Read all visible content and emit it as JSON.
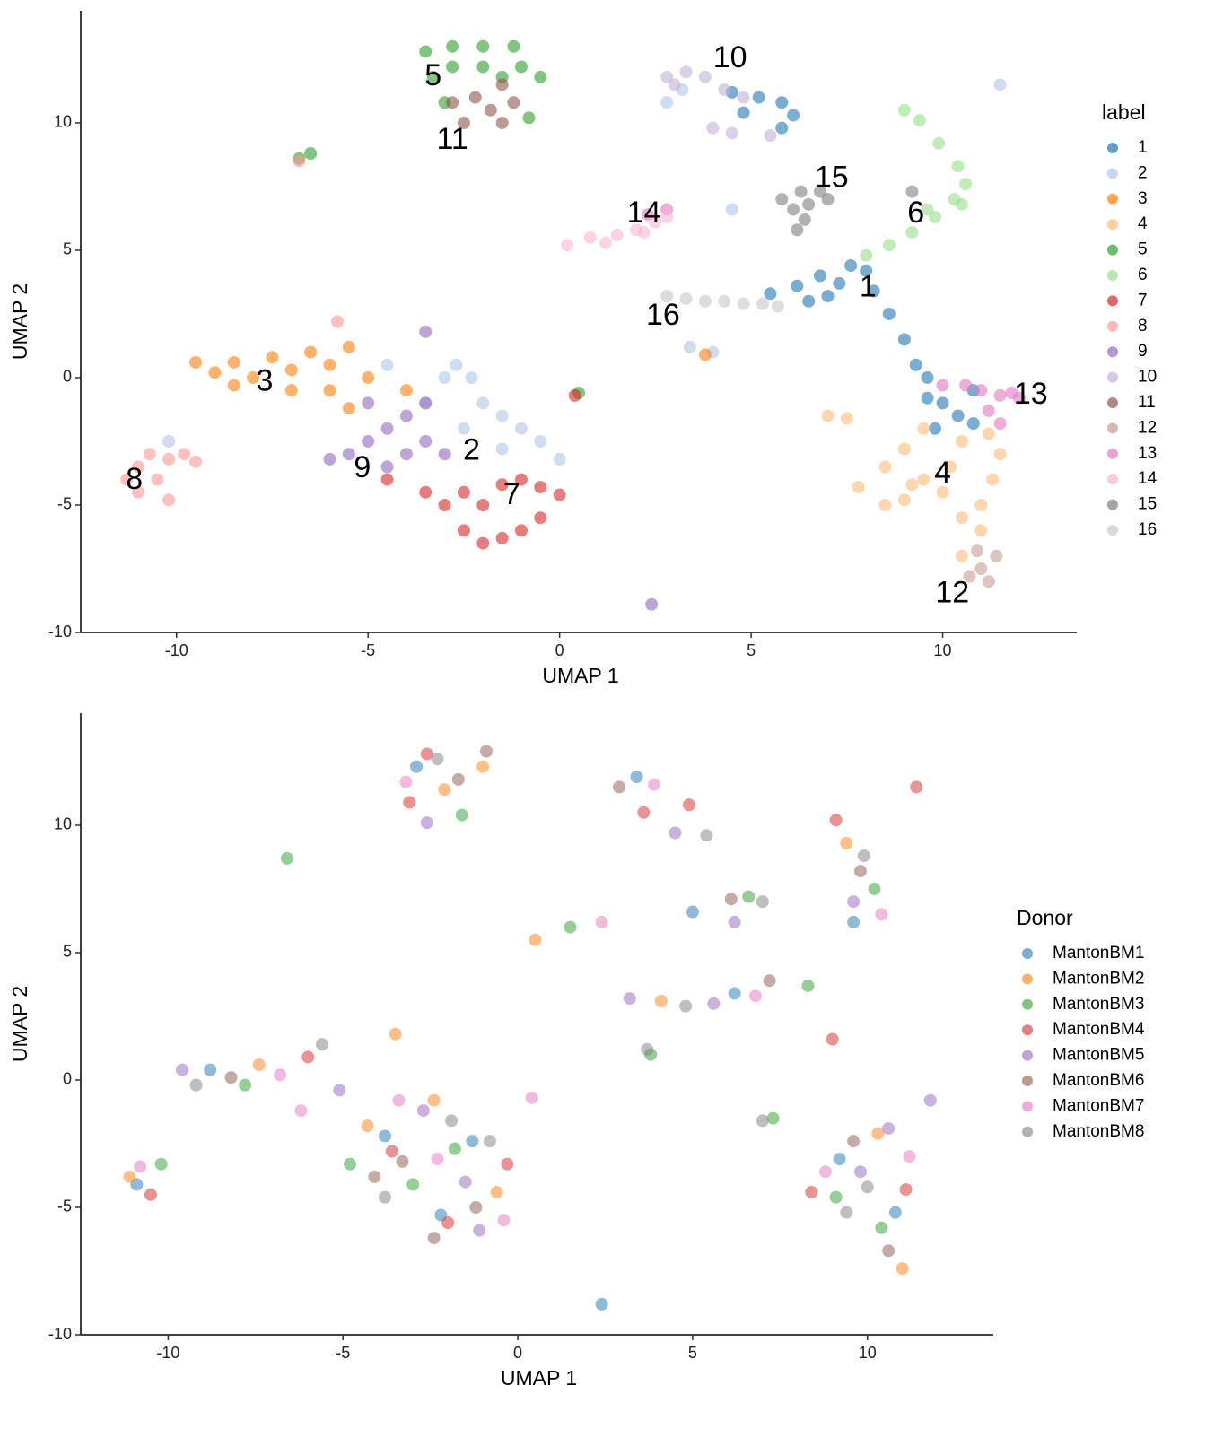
{
  "chart_data": [
    {
      "type": "scatter",
      "xlabel": "UMAP 1",
      "ylabel": "UMAP 2",
      "xlim": [
        -12.5,
        13.5
      ],
      "ylim": [
        -10,
        14.4
      ],
      "xticks": [
        -10,
        -5,
        0,
        5,
        10
      ],
      "yticks": [
        -10,
        -5,
        0,
        5,
        10
      ],
      "legend_title": "label",
      "legend": "right",
      "series": [
        {
          "name": "1",
          "color": "#1f77b4",
          "x": [
            5.5,
            6.2,
            6.8,
            7.3,
            7.6,
            8,
            8.2,
            8.6,
            9,
            9.3,
            9.6,
            9.6,
            10,
            10.4,
            10.8,
            9.8,
            10.8,
            4.5,
            5.2,
            5.8,
            6.1,
            5.8,
            4.8,
            6.5,
            7
          ],
          "y": [
            3.3,
            3.6,
            4,
            3.7,
            4.4,
            4.2,
            3.4,
            2.5,
            1.5,
            0.5,
            0,
            -0.8,
            -1,
            -1.5,
            -0.5,
            -2,
            -1.8,
            11.2,
            11,
            10.8,
            10.3,
            9.8,
            10.4,
            3,
            3.2
          ]
        },
        {
          "name": "2",
          "color": "#aec7e8",
          "x": [
            -3,
            -2.7,
            -2.3,
            -2,
            -1.5,
            -1,
            -0.5,
            0,
            -2.5,
            -1.5,
            -3.5,
            -4.5,
            4,
            3.4,
            -10.2,
            2.8,
            3.2,
            4.5,
            11.5
          ],
          "y": [
            0,
            0.5,
            0,
            -1,
            -1.5,
            -2,
            -2.5,
            -3.2,
            -2,
            -2.8,
            -1,
            0.5,
            1,
            1.2,
            -2.5,
            10.8,
            11.3,
            6.6,
            11.5
          ]
        },
        {
          "name": "3",
          "color": "#ff7f0e",
          "x": [
            -9.5,
            -9,
            -8.5,
            -8,
            -7.5,
            -7,
            -6.5,
            -6,
            -5.5,
            -6,
            -7,
            -8.5,
            -5,
            -4,
            -5.5,
            3.8
          ],
          "y": [
            0.6,
            0.2,
            0.6,
            0,
            0.8,
            0.3,
            1,
            0.5,
            1.2,
            -0.5,
            -0.5,
            -0.3,
            0,
            -0.5,
            -1.2,
            0.9
          ]
        },
        {
          "name": "4",
          "color": "#ffbb78",
          "x": [
            7.8,
            8.5,
            9,
            9.5,
            10.5,
            11.2,
            11.5,
            11.3,
            11,
            11,
            10.5,
            10,
            9.5,
            9,
            8.5,
            10.5,
            7,
            7.5,
            9.2,
            10.2
          ],
          "y": [
            -4.3,
            -3.5,
            -2.8,
            -2,
            -2.5,
            -2.2,
            -3,
            -4,
            -5,
            -6,
            -5.5,
            -4.5,
            -4,
            -4.8,
            -5,
            -7,
            -1.5,
            -1.6,
            -4.2,
            -3.5
          ]
        },
        {
          "name": "5",
          "color": "#2ca02c",
          "x": [
            -3.5,
            -2.8,
            -2,
            -1.2,
            -3.3,
            -2.8,
            -2,
            -1.5,
            -3,
            -1,
            -0.5,
            -0.8,
            -6.5,
            -6.8,
            0.5
          ],
          "y": [
            12.8,
            13,
            13,
            13,
            11.8,
            12.2,
            12.2,
            11.8,
            10.8,
            12.2,
            11.8,
            10.2,
            8.8,
            8.6,
            -0.6
          ]
        },
        {
          "name": "6",
          "color": "#98df8a",
          "x": [
            8,
            8.6,
            9.2,
            9.8,
            10.3,
            10.6,
            10.4,
            9.9,
            9.4,
            9,
            9.6,
            10.5
          ],
          "y": [
            4.8,
            5.2,
            5.7,
            6.3,
            7,
            7.6,
            8.3,
            9.2,
            10.1,
            10.5,
            6.6,
            6.8
          ]
        },
        {
          "name": "7",
          "color": "#d62728",
          "x": [
            -3,
            -2.5,
            -2,
            -1.5,
            -1,
            -0.5,
            0,
            -0.5,
            -1,
            -1.5,
            -2,
            -2.5,
            -3.5,
            -4.5,
            0.4
          ],
          "y": [
            -5,
            -4.5,
            -5,
            -4.2,
            -4,
            -4.3,
            -4.6,
            -5.5,
            -6,
            -6.3,
            -6.5,
            -6,
            -4.5,
            -4,
            -0.7
          ]
        },
        {
          "name": "8",
          "color": "#ff9896",
          "x": [
            -11.3,
            -11,
            -10.7,
            -10.2,
            -9.8,
            -9.5,
            -10.5,
            -10.2,
            -11,
            -6.8,
            -5.8
          ],
          "y": [
            -4,
            -3.5,
            -3,
            -3.2,
            -3,
            -3.3,
            -4,
            -4.8,
            -4.5,
            8.5,
            2.2
          ]
        },
        {
          "name": "9",
          "color": "#9467bd",
          "x": [
            -6,
            -5.5,
            -5,
            -4.5,
            -4,
            -4,
            -3.5,
            -3,
            -4.5,
            -5,
            -3.5,
            -3.5,
            2.4
          ],
          "y": [
            -3.2,
            -3,
            -2.5,
            -2,
            -1.5,
            -3,
            -2.5,
            -3,
            -3.5,
            -1,
            -1,
            1.8,
            -8.9
          ]
        },
        {
          "name": "10",
          "color": "#c5b0d5",
          "x": [
            2.8,
            3.3,
            3.8,
            4.3,
            4.8,
            4,
            4.5,
            5.5,
            3
          ],
          "y": [
            11.8,
            12,
            11.8,
            11.3,
            11,
            9.8,
            9.6,
            9.5,
            11.5
          ]
        },
        {
          "name": "11",
          "color": "#8c564b",
          "x": [
            -2.8,
            -2.2,
            -1.8,
            -2.5,
            -1.5,
            -1.2,
            -1.5
          ],
          "y": [
            10.8,
            11,
            10.5,
            10,
            10,
            10.8,
            11.5
          ]
        },
        {
          "name": "12",
          "color": "#c49c94",
          "x": [
            10.9,
            11,
            11.2,
            10.7,
            11.4
          ],
          "y": [
            -6.8,
            -7.5,
            -8,
            -7.8,
            -7
          ]
        },
        {
          "name": "13",
          "color": "#e377c2",
          "x": [
            10,
            10.6,
            11,
            11.5,
            12,
            11.8,
            11.2,
            11.5,
            2.8,
            2.3
          ],
          "y": [
            -0.3,
            -0.3,
            -0.5,
            -0.7,
            -0.8,
            -0.6,
            -1.3,
            -1.8,
            6.6,
            6.4
          ]
        },
        {
          "name": "14",
          "color": "#f7b6d2",
          "x": [
            0.2,
            0.8,
            1.5,
            2,
            2.5,
            2.8,
            1.2,
            2.2
          ],
          "y": [
            5.2,
            5.5,
            5.6,
            5.8,
            6.1,
            6.3,
            5.3,
            5.7
          ]
        },
        {
          "name": "15",
          "color": "#7f7f7f",
          "x": [
            5.8,
            6.3,
            6.8,
            7,
            6.5,
            6.1,
            6.4,
            6.2,
            9.2
          ],
          "y": [
            7,
            7.3,
            7.3,
            7,
            6.8,
            6.6,
            6.2,
            5.8,
            7.3
          ]
        },
        {
          "name": "16",
          "color": "#c7c7c7",
          "x": [
            2.8,
            3.3,
            3.8,
            4.3,
            4.8,
            5.3,
            5.7
          ],
          "y": [
            3.2,
            3.1,
            3,
            3,
            2.9,
            2.9,
            2.8
          ]
        }
      ],
      "annotations": [
        {
          "text": "1",
          "x": 8.05,
          "y": 3.5
        },
        {
          "text": "2",
          "x": -2.3,
          "y": -2.9
        },
        {
          "text": "3",
          "x": -7.7,
          "y": -0.2
        },
        {
          "text": "4",
          "x": 10,
          "y": -3.8
        },
        {
          "text": "5",
          "x": -3.3,
          "y": 11.8
        },
        {
          "text": "6",
          "x": 9.3,
          "y": 6.4
        },
        {
          "text": "7",
          "x": -1.25,
          "y": -4.65
        },
        {
          "text": "8",
          "x": -11.1,
          "y": -4.05
        },
        {
          "text": "9",
          "x": -5.15,
          "y": -3.6
        },
        {
          "text": "10",
          "x": 4.45,
          "y": 12.5
        },
        {
          "text": "11",
          "x": -2.8,
          "y": 9.3
        },
        {
          "text": "12",
          "x": 10.25,
          "y": -8.5
        },
        {
          "text": "13",
          "x": 12.3,
          "y": -0.7
        },
        {
          "text": "14",
          "x": 2.2,
          "y": 6.4
        },
        {
          "text": "15",
          "x": 7.1,
          "y": 7.8
        },
        {
          "text": "16",
          "x": 2.7,
          "y": 2.4
        }
      ]
    },
    {
      "type": "scatter",
      "xlabel": "UMAP 1",
      "ylabel": "UMAP 2",
      "xlim": [
        -12.5,
        13.6
      ],
      "ylim": [
        -10,
        14.4
      ],
      "xticks": [
        -10,
        -5,
        0,
        5,
        10
      ],
      "yticks": [
        -10,
        -5,
        0,
        5,
        10
      ],
      "legend_title": "Donor",
      "legend": "right",
      "series": [
        {
          "name": "MantonBM1",
          "color": "#1f77b4",
          "x": [
            -8.8,
            -10.9,
            -3.8,
            -1.3,
            -2.2,
            -2.9,
            3.4,
            6.2,
            9.2,
            10.8,
            9.6,
            5,
            2.4
          ],
          "y": [
            0.4,
            -4.1,
            -2.2,
            -2.4,
            -5.3,
            12.3,
            11.9,
            3.4,
            -3.1,
            -5.2,
            6.2,
            6.6,
            -8.8
          ]
        },
        {
          "name": "MantonBM2",
          "color": "#ff7f0e",
          "x": [
            -7.4,
            -11.1,
            -4.3,
            -2.4,
            -0.6,
            -2.1,
            -1,
            4.1,
            10.3,
            11,
            9.4,
            0.5,
            -3.5
          ],
          "y": [
            0.6,
            -3.8,
            -1.8,
            -0.8,
            -4.4,
            11.4,
            12.3,
            3.1,
            -2.1,
            -7.4,
            9.3,
            5.5,
            1.8
          ]
        },
        {
          "name": "MantonBM3",
          "color": "#2ca02c",
          "x": [
            -7.8,
            -10.2,
            -3,
            -1.8,
            -4.8,
            -1.6,
            -6.6,
            8.3,
            9.1,
            10.4,
            10.2,
            1.5,
            3.8,
            6.6,
            7.3
          ],
          "y": [
            -0.2,
            -3.3,
            -4.1,
            -2.7,
            -3.3,
            10.4,
            8.7,
            3.7,
            -4.6,
            -5.8,
            7.5,
            6,
            1,
            7.2,
            -1.5
          ]
        },
        {
          "name": "MantonBM4",
          "color": "#d62728",
          "x": [
            -6,
            -10.5,
            -2,
            -3.6,
            -0.3,
            -3.1,
            4.9,
            9,
            8.4,
            11.1,
            9.1,
            11.4,
            3.6,
            -2.6
          ],
          "y": [
            0.9,
            -4.5,
            -5.6,
            -2.8,
            -3.3,
            10.9,
            10.8,
            1.6,
            -4.4,
            -4.3,
            10.2,
            11.5,
            10.5,
            12.8
          ]
        },
        {
          "name": "MantonBM5",
          "color": "#9467bd",
          "x": [
            -5.1,
            -9.6,
            -1.1,
            -2.7,
            -1.5,
            -2.6,
            4.5,
            5.6,
            10.6,
            9.8,
            9.6,
            6.2,
            3.2,
            11.8
          ],
          "y": [
            -0.4,
            0.4,
            -5.9,
            -1.2,
            -4,
            10.1,
            9.7,
            3,
            -1.9,
            -3.6,
            7,
            6.2,
            3.2,
            -0.8
          ]
        },
        {
          "name": "MantonBM6",
          "color": "#8c564b",
          "x": [
            -8.2,
            -4.1,
            -2.4,
            -1.2,
            -3.3,
            -1.7,
            2.9,
            7.2,
            9.6,
            10.6,
            9.8,
            6.1,
            -0.9
          ],
          "y": [
            0.1,
            -3.8,
            -6.2,
            -5,
            -3.2,
            11.8,
            11.5,
            3.9,
            -2.4,
            -6.7,
            8.2,
            7.1,
            12.9
          ]
        },
        {
          "name": "MantonBM7",
          "color": "#e377c2",
          "x": [
            -6.8,
            -10.8,
            -3.4,
            -2.3,
            -0.4,
            -3.2,
            3.9,
            6.8,
            8.8,
            11.2,
            10.4,
            2.4,
            -6.2,
            0.4
          ],
          "y": [
            0.2,
            -3.4,
            -0.8,
            -3.1,
            -5.5,
            11.7,
            11.6,
            3.3,
            -3.6,
            -3,
            6.5,
            6.2,
            -1.2,
            -0.7
          ]
        },
        {
          "name": "MantonBM8",
          "color": "#7f7f7f",
          "x": [
            -9.2,
            -5.6,
            -1.9,
            -3.8,
            -0.8,
            -2.3,
            5.4,
            4.8,
            10,
            9.4,
            9.9,
            7,
            3.7,
            7
          ],
          "y": [
            -0.2,
            1.4,
            -1.6,
            -4.6,
            -2.4,
            12.6,
            9.6,
            2.9,
            -4.2,
            -5.2,
            8.8,
            7,
            1.2,
            -1.6
          ]
        }
      ]
    }
  ]
}
